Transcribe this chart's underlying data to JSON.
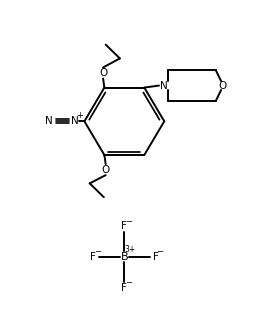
{
  "background_color": "#ffffff",
  "line_color": "#000000",
  "line_width": 1.4,
  "text_color": "#000000",
  "figsize": [
    2.59,
    3.28
  ],
  "dpi": 100,
  "xlim": [
    0,
    10
  ],
  "ylim": [
    0,
    13
  ]
}
